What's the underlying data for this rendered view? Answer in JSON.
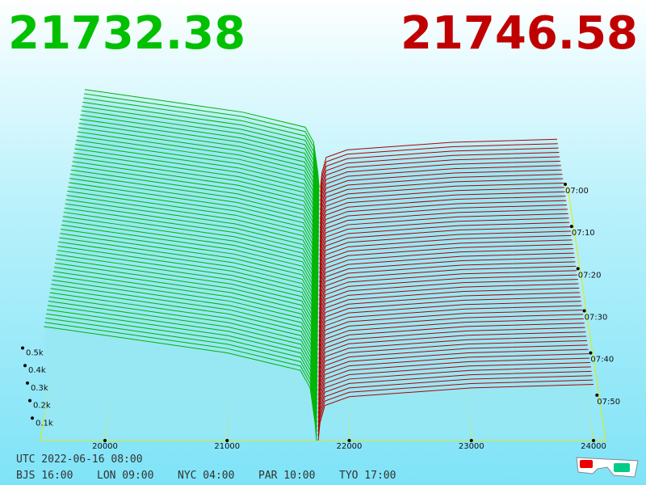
{
  "header": {
    "bid": 21732.38,
    "ask": 21746.58
  },
  "chart_data": {
    "type": "depth3d",
    "xlim": [
      19470,
      24100
    ],
    "xticks": [
      20000,
      21000,
      22000,
      23000,
      24000
    ],
    "depth_ticks": [
      {
        "value": 100,
        "label": "0.1k"
      },
      {
        "value": 200,
        "label": "0.2k"
      },
      {
        "value": 300,
        "label": "0.3k"
      },
      {
        "value": 400,
        "label": "0.4k"
      },
      {
        "value": 500,
        "label": "0.5k"
      }
    ],
    "time_labels": [
      "07:00",
      "07:10",
      "07:20",
      "07:30",
      "07:40",
      "07:50"
    ],
    "bids": {
      "color": "#00b400",
      "price": [
        21732,
        21720,
        21680,
        21600,
        21300,
        21000,
        20500,
        20000,
        19500
      ],
      "depth": [
        0,
        100,
        300,
        400,
        450,
        500,
        550,
        600,
        650
      ]
    },
    "asks": {
      "color": "#b00000",
      "price": [
        21746,
        21760,
        21800,
        22000,
        23000,
        24000
      ],
      "depth": [
        0,
        100,
        200,
        250,
        300,
        320
      ]
    }
  },
  "footer": {
    "utc": "UTC 2022-06-16 08:00",
    "zones": [
      "BJS 16:00",
      "LON 09:00",
      "NYC 04:00",
      "PAR 10:00",
      "TYO 17:00"
    ]
  }
}
